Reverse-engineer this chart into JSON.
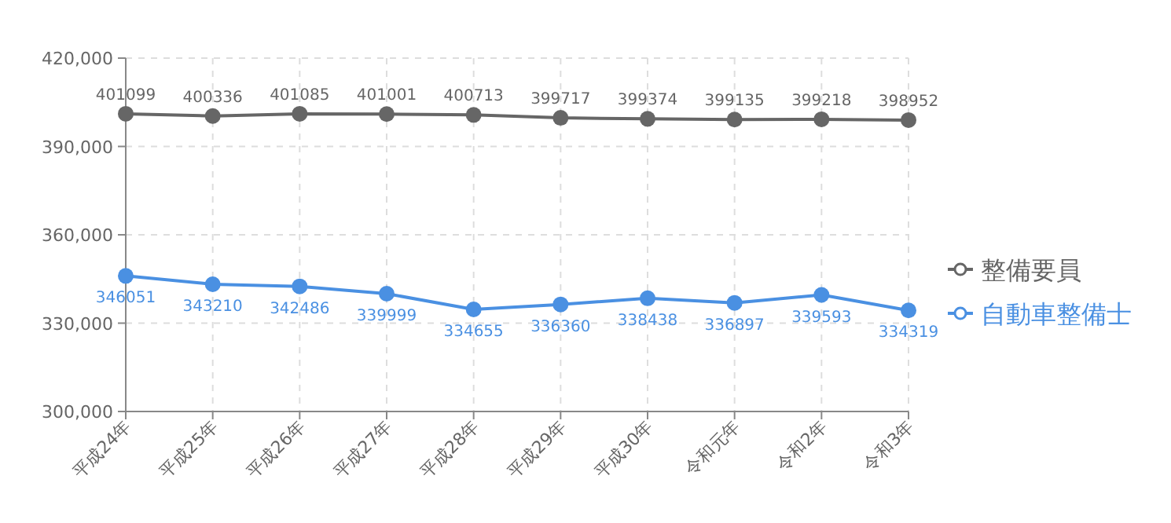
{
  "chart_data": {
    "type": "line",
    "categories": [
      "平成24年",
      "平成25年",
      "平成26年",
      "平成27年",
      "平成28年",
      "平成29年",
      "平成30年",
      "令和元年",
      "令和2年",
      "令和3年"
    ],
    "series": [
      {
        "name": "整備要員",
        "color": "#666666",
        "values": [
          401099,
          400336,
          401085,
          401001,
          400713,
          399717,
          399374,
          399135,
          399218,
          398952
        ]
      },
      {
        "name": "自動車整備士",
        "color": "#4a90e2",
        "values": [
          346051,
          343210,
          342486,
          339999,
          334655,
          336360,
          338438,
          336897,
          339593,
          334319
        ]
      }
    ],
    "ylim": [
      300000,
      420000
    ],
    "yticks": [
      {
        "value": 300000,
        "label": "300,000"
      },
      {
        "value": 330000,
        "label": "330,000"
      },
      {
        "value": 360000,
        "label": "360,000"
      },
      {
        "value": 390000,
        "label": "390,000"
      },
      {
        "value": 420000,
        "label": "420,000"
      }
    ],
    "grid": true,
    "legend": "right",
    "marker": "circle",
    "line_style": "solid",
    "data_labels": true
  }
}
